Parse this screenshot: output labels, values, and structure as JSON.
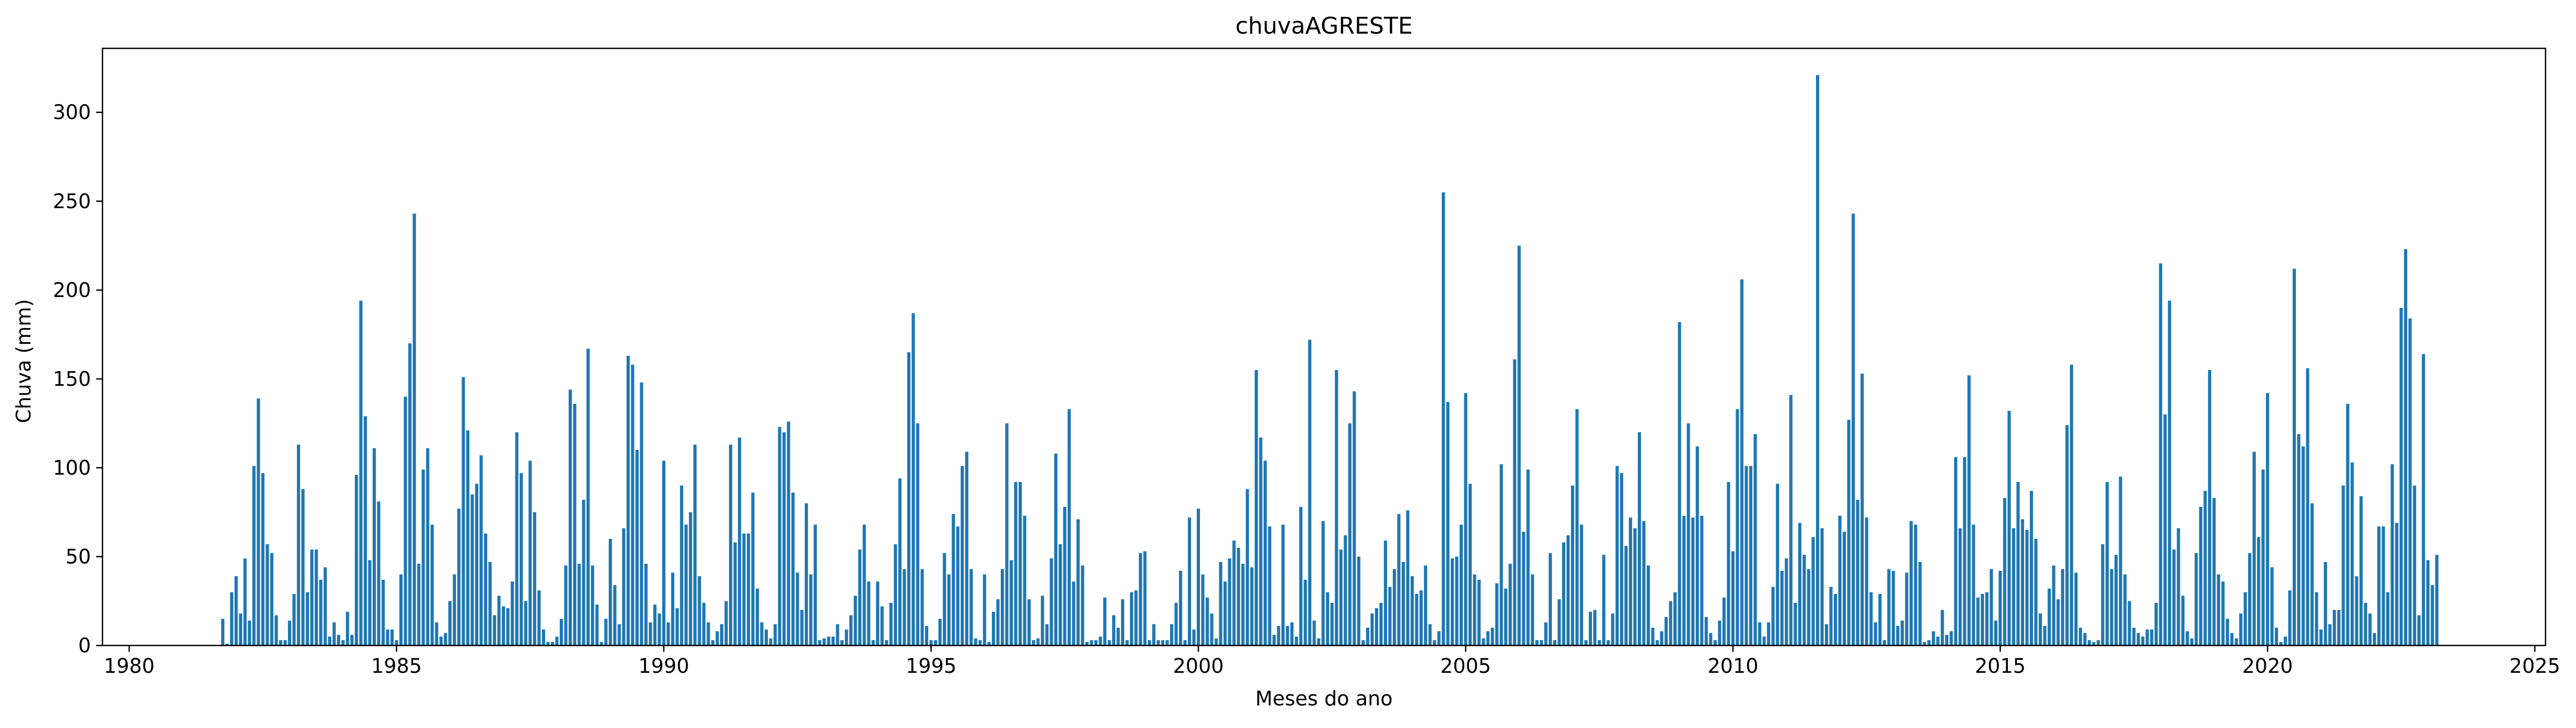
{
  "chart_data": {
    "type": "bar",
    "title": "chuvaAGRESTE",
    "xlabel": "Meses do ano",
    "ylabel": "Chuva (mm)",
    "xlim": [
      1979.5,
      2025.2
    ],
    "ylim": [
      0,
      336
    ],
    "xticks": [
      1980,
      1985,
      1990,
      1995,
      2000,
      2005,
      2010,
      2015,
      2020,
      2025
    ],
    "yticks": [
      0,
      50,
      100,
      150,
      200,
      250,
      300
    ],
    "bar_color": "#1f77b4",
    "grid": false,
    "legend": "none",
    "start_year": 1981,
    "start_month": 10,
    "values": [
      15,
      1,
      30,
      39,
      18,
      49,
      14,
      101,
      139,
      97,
      57,
      52,
      17,
      3,
      3,
      14,
      29,
      113,
      88,
      30,
      54,
      54,
      37,
      44,
      5,
      13,
      6,
      3,
      19,
      6,
      96,
      194,
      129,
      48,
      111,
      81,
      37,
      9,
      9,
      3,
      40,
      140,
      170,
      243,
      46,
      99,
      111,
      68,
      13,
      5,
      7,
      25,
      40,
      77,
      151,
      121,
      85,
      91,
      107,
      63,
      47,
      17,
      28,
      22,
      21,
      36,
      120,
      97,
      25,
      104,
      75,
      31,
      9,
      2,
      2,
      5,
      15,
      45,
      144,
      136,
      46,
      82,
      167,
      45,
      23,
      2,
      15,
      60,
      34,
      12,
      66,
      163,
      158,
      110,
      148,
      46,
      13,
      23,
      18,
      104,
      13,
      41,
      21,
      90,
      68,
      75,
      113,
      39,
      24,
      13,
      3,
      8,
      12,
      25,
      113,
      58,
      117,
      63,
      63,
      86,
      32,
      13,
      9,
      4,
      12,
      123,
      120,
      126,
      86,
      41,
      20,
      80,
      40,
      68,
      3,
      4,
      5,
      5,
      12,
      3,
      9,
      17,
      28,
      54,
      68,
      36,
      3,
      36,
      22,
      3,
      24,
      57,
      94,
      43,
      165,
      187,
      125,
      43,
      11,
      3,
      3,
      15,
      52,
      40,
      74,
      67,
      101,
      109,
      43,
      4,
      3,
      40,
      2,
      19,
      26,
      43,
      125,
      48,
      92,
      92,
      73,
      26,
      3,
      4,
      28,
      12,
      49,
      108,
      57,
      78,
      133,
      36,
      71,
      45,
      2,
      3,
      3,
      5,
      27,
      3,
      17,
      10,
      26,
      3,
      30,
      31,
      52,
      53,
      3,
      12,
      3,
      3,
      3,
      12,
      24,
      42,
      3,
      72,
      9,
      77,
      40,
      27,
      18,
      4,
      47,
      36,
      49,
      59,
      55,
      46,
      88,
      44,
      155,
      117,
      104,
      67,
      6,
      11,
      68,
      11,
      13,
      5,
      78,
      37,
      172,
      14,
      4,
      70,
      30,
      24,
      155,
      54,
      62,
      125,
      143,
      50,
      3,
      10,
      18,
      21,
      24,
      59,
      33,
      43,
      74,
      47,
      76,
      39,
      29,
      31,
      45,
      12,
      3,
      8,
      255,
      137,
      49,
      50,
      68,
      142,
      91,
      40,
      37,
      4,
      8,
      10,
      35,
      102,
      32,
      46,
      161,
      225,
      64,
      99,
      40,
      3,
      3,
      13,
      52,
      3,
      26,
      58,
      62,
      90,
      133,
      68,
      3,
      19,
      20,
      3,
      51,
      3,
      18,
      101,
      97,
      56,
      72,
      66,
      120,
      70,
      45,
      10,
      3,
      8,
      16,
      25,
      30,
      182,
      73,
      125,
      72,
      112,
      73,
      16,
      7,
      3,
      14,
      27,
      92,
      53,
      133,
      206,
      101,
      101,
      119,
      13,
      5,
      13,
      33,
      91,
      42,
      49,
      141,
      24,
      69,
      51,
      43,
      61,
      321,
      66,
      12,
      33,
      29,
      73,
      64,
      127,
      243,
      82,
      153,
      72,
      30,
      13,
      29,
      3,
      43,
      42,
      11,
      14,
      41,
      70,
      68,
      47,
      2,
      3,
      8,
      5,
      20,
      6,
      8,
      106,
      66,
      106,
      152,
      68,
      27,
      29,
      30,
      43,
      14,
      42,
      83,
      132,
      66,
      92,
      71,
      65,
      87,
      60,
      18,
      11,
      32,
      45,
      26,
      43,
      124,
      158,
      41,
      10,
      7,
      3,
      2,
      3,
      57,
      92,
      43,
      51,
      95,
      40,
      25,
      10,
      7,
      5,
      9,
      9,
      24,
      215,
      130,
      194,
      54,
      66,
      28,
      8,
      4,
      52,
      78,
      87,
      155,
      83,
      40,
      36,
      15,
      7,
      4,
      18,
      30,
      52,
      109,
      61,
      99,
      142,
      44,
      10,
      2,
      5,
      31,
      212,
      119,
      112,
      156,
      80,
      30,
      9,
      47,
      12,
      20,
      20,
      90,
      136,
      103,
      39,
      84,
      24,
      18,
      7,
      67,
      67,
      30,
      102,
      69,
      190,
      223,
      184,
      90,
      17,
      164,
      48,
      34,
      51
    ]
  }
}
